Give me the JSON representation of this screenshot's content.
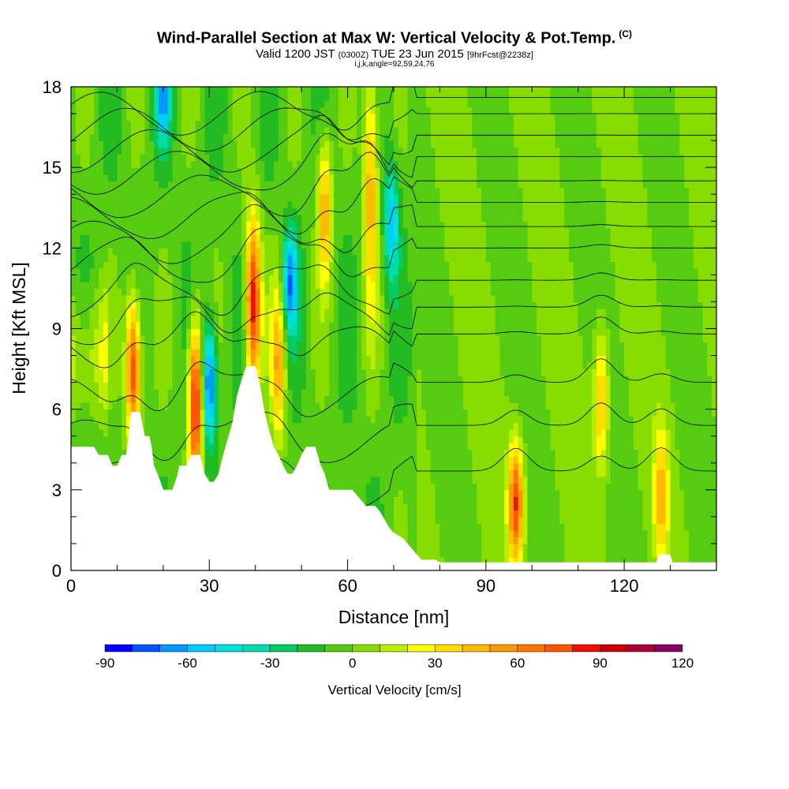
{
  "header": {
    "title": "Wind-Parallel Section at Max W: Vertical Velocity & Pot.Temp.",
    "copyright": "(C)",
    "subtitle_a": "Valid 1200 JST",
    "subtitle_b": "(0300Z)",
    "subtitle_c": "TUE 23 Jun 2015",
    "subtitle_d": "[9hrFcst@2238z]",
    "subtitle2": "i,j,k,angle=92,59,24,76"
  },
  "chart_data": {
    "type": "heatmap",
    "title": "Wind-Parallel Section at Max W: Vertical Velocity & Pot.Temp.",
    "xlabel": "Distance [nm]",
    "ylabel": "Height [Kft MSL]",
    "xlim": [
      0,
      140
    ],
    "ylim": [
      0,
      18
    ],
    "x_ticks": [
      0,
      30,
      60,
      90,
      120
    ],
    "y_ticks": [
      0,
      3,
      6,
      9,
      12,
      15,
      18
    ],
    "colorbar": {
      "label": "Vertical Velocity [cm/s]",
      "tick_labels": [
        -90,
        -60,
        -30,
        0,
        30,
        60,
        90,
        120
      ],
      "levels": [
        -90,
        -80,
        -70,
        -60,
        -50,
        -40,
        -30,
        -20,
        -10,
        0,
        10,
        20,
        30,
        40,
        50,
        60,
        70,
        80,
        90,
        100,
        110,
        120
      ],
      "colors": [
        "#0000ff",
        "#0055ff",
        "#0099ff",
        "#00ccff",
        "#00e0e0",
        "#00ddaa",
        "#00cc66",
        "#22bb22",
        "#55cc11",
        "#88dd00",
        "#bbee00",
        "#ffff00",
        "#ffdd00",
        "#ffbb00",
        "#ff9900",
        "#ff7700",
        "#ff5500",
        "#ee1100",
        "#cc0000",
        "#aa0033",
        "#880066"
      ]
    },
    "terrain": [
      [
        0,
        4.6
      ],
      [
        5,
        4.6
      ],
      [
        6,
        4.3
      ],
      [
        8,
        4.3
      ],
      [
        9,
        3.9
      ],
      [
        10,
        3.9
      ],
      [
        11,
        4.3
      ],
      [
        12,
        4.3
      ],
      [
        12.5,
        5.0
      ],
      [
        13,
        5.9
      ],
      [
        15,
        5.9
      ],
      [
        16,
        5.0
      ],
      [
        17,
        5.0
      ],
      [
        17.5,
        4.6
      ],
      [
        18,
        3.9
      ],
      [
        19,
        3.5
      ],
      [
        20,
        3.0
      ],
      [
        22,
        3.0
      ],
      [
        23,
        3.5
      ],
      [
        23.5,
        3.9
      ],
      [
        25,
        3.9
      ],
      [
        26,
        4.3
      ],
      [
        28,
        4.3
      ],
      [
        29,
        3.6
      ],
      [
        30,
        3.3
      ],
      [
        31,
        3.3
      ],
      [
        32,
        3.6
      ],
      [
        33,
        4.3
      ],
      [
        34,
        4.9
      ],
      [
        35,
        5.5
      ],
      [
        36,
        6.5
      ],
      [
        37,
        7.1
      ],
      [
        38,
        7.6
      ],
      [
        40,
        7.6
      ],
      [
        41,
        6.9
      ],
      [
        42,
        5.9
      ],
      [
        43,
        5.2
      ],
      [
        44,
        4.6
      ],
      [
        45,
        4.3
      ],
      [
        46,
        3.9
      ],
      [
        47,
        3.6
      ],
      [
        48,
        3.6
      ],
      [
        49,
        3.9
      ],
      [
        50,
        4.3
      ],
      [
        51,
        4.6
      ],
      [
        53,
        4.6
      ],
      [
        54,
        4.0
      ],
      [
        55,
        3.6
      ],
      [
        56,
        3.0
      ],
      [
        61,
        3.0
      ],
      [
        62,
        2.8
      ],
      [
        63,
        2.6
      ],
      [
        64,
        2.4
      ],
      [
        66,
        2.4
      ],
      [
        67,
        2.2
      ],
      [
        68,
        1.9
      ],
      [
        69,
        1.6
      ],
      [
        70,
        1.4
      ],
      [
        72,
        1.2
      ],
      [
        73,
        1.0
      ],
      [
        74,
        0.8
      ],
      [
        75,
        0.6
      ],
      [
        76,
        0.4
      ],
      [
        79,
        0.4
      ],
      [
        80,
        0.3
      ],
      [
        127,
        0.3
      ],
      [
        127.5,
        0.6
      ],
      [
        130,
        0.6
      ],
      [
        130.5,
        0.3
      ],
      [
        140,
        0.3
      ]
    ],
    "updraft_cores": [
      {
        "x": 13.5,
        "z_bottom": 6,
        "z_top": 9,
        "w": 90
      },
      {
        "x": 27,
        "z_bottom": 4.5,
        "z_top": 8,
        "w": 100
      },
      {
        "x": 39.5,
        "z_bottom": 8,
        "z_top": 12,
        "w": 95
      },
      {
        "x": 45,
        "z_bottom": 6,
        "z_top": 9.5,
        "w": 55
      },
      {
        "x": 55,
        "z_bottom": 12,
        "z_top": 15,
        "w": 55
      },
      {
        "x": 65,
        "z_bottom": 11,
        "z_top": 18,
        "w": 55
      },
      {
        "x": 96.5,
        "z_bottom": 1.5,
        "z_top": 3.5,
        "w": 80
      },
      {
        "x": 115,
        "z_bottom": 5,
        "z_top": 7.5,
        "w": 45
      },
      {
        "x": 128,
        "z_bottom": 1.5,
        "z_top": 4,
        "w": 45
      }
    ],
    "downdraft_cores": [
      {
        "x": 30,
        "z_bottom": 6,
        "z_top": 8,
        "w": -75
      },
      {
        "x": 47.5,
        "z_bottom": 10,
        "z_top": 11.5,
        "w": -60
      },
      {
        "x": 69.5,
        "z_bottom": 12,
        "z_top": 14,
        "w": -50
      },
      {
        "x": 20,
        "z_bottom": 17,
        "z_top": 18,
        "w": -50
      }
    ]
  }
}
